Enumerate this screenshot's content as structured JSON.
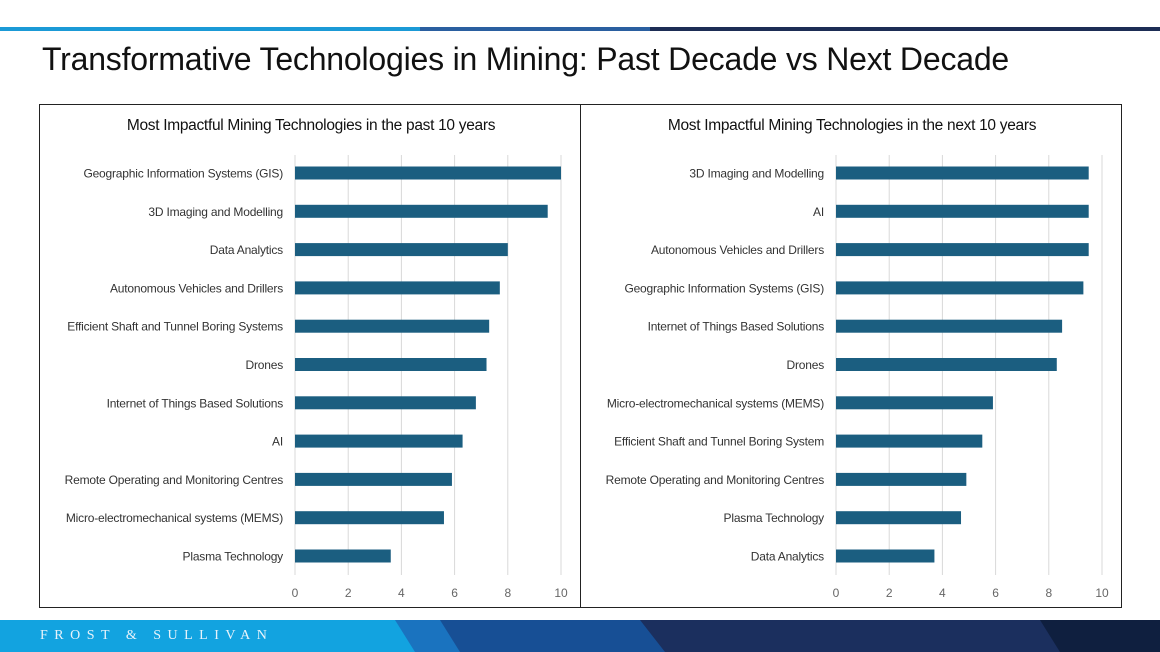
{
  "title": "Transformative Technologies in Mining: Past Decade vs Next Decade",
  "brand": "FROST & SULLIVAN",
  "colors": {
    "bar": "#1b5e80",
    "grid": "#d9d9d9",
    "topbar_light": "#1b9ad6",
    "topbar_dark": "#1d2d55"
  },
  "chart_data": [
    {
      "type": "bar",
      "orientation": "horizontal",
      "title": "Most Impactful Mining Technologies in the past 10 years",
      "categories": [
        "Geographic Information Systems (GIS)",
        "3D Imaging and Modelling",
        "Data Analytics",
        "Autonomous Vehicles and Drillers",
        "Efficient Shaft and Tunnel Boring Systems",
        "Drones",
        "Internet of Things Based Solutions",
        "AI",
        "Remote Operating and Monitoring Centres",
        "Micro-electromechanical systems (MEMS)",
        "Plasma Technology"
      ],
      "values": [
        10,
        9.5,
        8,
        7.7,
        7.3,
        7.2,
        6.8,
        6.3,
        5.9,
        5.6,
        3.6
      ],
      "xlim": [
        0,
        10
      ],
      "ticks": [
        0,
        2,
        4,
        6,
        8,
        10
      ],
      "grid": true
    },
    {
      "type": "bar",
      "orientation": "horizontal",
      "title": "Most Impactful Mining Technologies in the next 10 years",
      "categories": [
        "3D Imaging and Modelling",
        "AI",
        "Autonomous Vehicles and Drillers",
        "Geographic Information Systems (GIS)",
        "Internet of Things Based Solutions",
        "Drones",
        "Micro-electromechanical systems (MEMS)",
        "Efficient Shaft and Tunnel Boring System",
        "Remote Operating and Monitoring Centres",
        "Plasma Technology",
        "Data Analytics"
      ],
      "values": [
        9.5,
        9.5,
        9.5,
        9.3,
        8.5,
        8.3,
        5.9,
        5.5,
        4.9,
        4.7,
        3.7
      ],
      "xlim": [
        0,
        10
      ],
      "ticks": [
        0,
        2,
        4,
        6,
        8,
        10
      ],
      "grid": true
    }
  ]
}
